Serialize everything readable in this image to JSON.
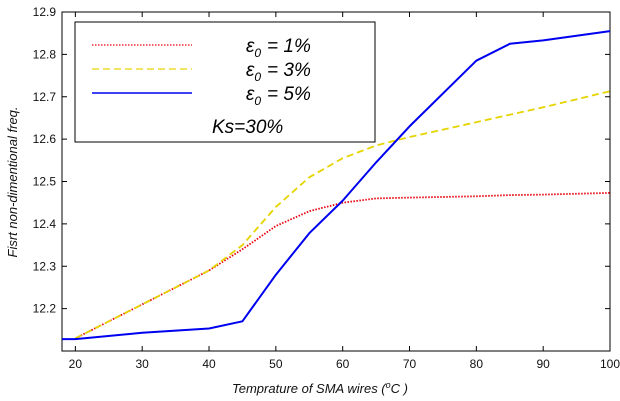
{
  "chart_data": {
    "type": "line",
    "xlabel": "Temprature of SMA wires (",
    "xlabel_unit": "o",
    "xlabel_unit_tail": "C )",
    "ylabel": "Fisrt non-dimentional freq.",
    "xlim": [
      18,
      100
    ],
    "ylim": [
      12.1,
      12.9
    ],
    "x_ticks": [
      20,
      30,
      40,
      50,
      60,
      70,
      80,
      90,
      100
    ],
    "y_ticks": [
      12.2,
      12.3,
      12.4,
      12.5,
      12.6,
      12.7,
      12.8,
      12.9
    ],
    "grid": false,
    "legend_position": "top-left",
    "series": [
      {
        "name": "ε",
        "name_sub": "0",
        "name_value": "= 1%",
        "color": "#e8000b",
        "style": "dotted",
        "x": [
          20,
          30,
          40,
          45,
          50,
          55,
          60,
          65,
          70,
          80,
          85,
          90,
          100
        ],
        "y": [
          12.13,
          12.21,
          12.29,
          12.34,
          12.395,
          12.43,
          12.45,
          12.46,
          12.462,
          12.465,
          12.468,
          12.469,
          12.473
        ]
      },
      {
        "name": "ε",
        "name_sub": "0",
        "name_value": "= 3%",
        "color": "#e6d400",
        "style": "dashed",
        "x": [
          20,
          30,
          40,
          45,
          50,
          55,
          60,
          65,
          70,
          80,
          90,
          100
        ],
        "y": [
          12.13,
          12.21,
          12.29,
          12.35,
          12.44,
          12.51,
          12.555,
          12.585,
          12.605,
          12.64,
          12.675,
          12.713
        ]
      },
      {
        "name": "ε",
        "name_sub": "0",
        "name_value": "= 5%",
        "color": "#0000f0",
        "style": "solid",
        "x": [
          18,
          20,
          30,
          40,
          45,
          50,
          55,
          60,
          65,
          70,
          80,
          85,
          90,
          100
        ],
        "y": [
          12.128,
          12.128,
          12.143,
          12.153,
          12.17,
          12.28,
          12.378,
          12.455,
          12.545,
          12.63,
          12.785,
          12.825,
          12.833,
          12.855
        ]
      }
    ],
    "legend_extra": "Ks=30%"
  }
}
